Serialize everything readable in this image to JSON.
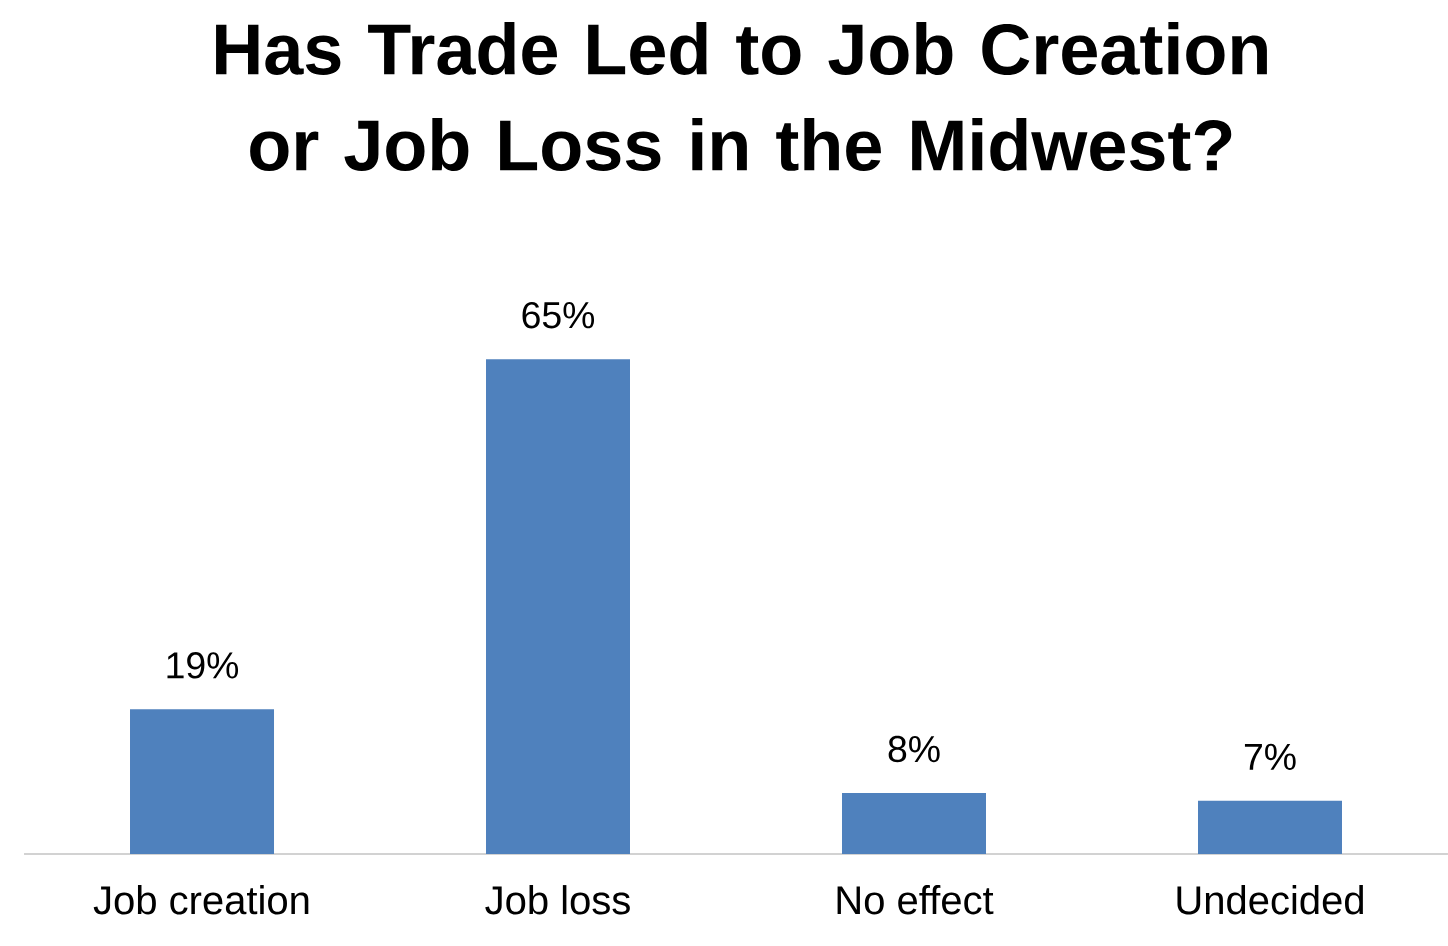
{
  "chart_data": {
    "type": "bar",
    "title": "Has Trade Led to Job Creation or Job Loss in the Midwest?",
    "categories": [
      "Job creation",
      "Job loss",
      "No effect",
      "Undecided"
    ],
    "values": [
      19,
      65,
      8,
      7
    ],
    "value_labels": [
      "19%",
      "65%",
      "8%",
      "7%"
    ],
    "color": "#4f81bd"
  }
}
